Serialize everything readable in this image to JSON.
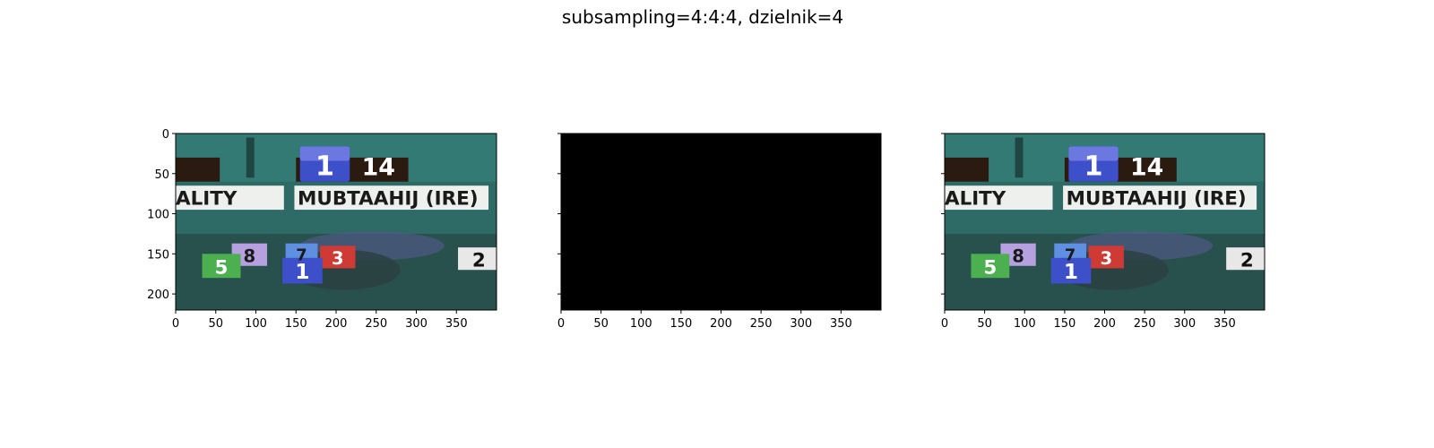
{
  "figure": {
    "title": "subsampling=4:4:4, dzielnik=4"
  },
  "scene": {
    "top_badge_number": "1",
    "top_odds": "14",
    "left_name_fragment": "ALITY",
    "horse_name": "MUBTAAHIJ (IRE)",
    "saddlecloths": [
      "8",
      "7",
      "3",
      "5",
      "1",
      "2"
    ]
  },
  "chart_data": [
    {
      "type": "image",
      "panel": "left",
      "content": "video-frame",
      "xlim": [
        0,
        400
      ],
      "ylim": [
        220,
        0
      ],
      "xticks": [
        0,
        50,
        100,
        150,
        200,
        250,
        300,
        350
      ],
      "yticks": [
        0,
        50,
        100,
        150,
        200
      ],
      "ytick_labels_shown": true
    },
    {
      "type": "image",
      "panel": "middle",
      "content": "black",
      "xlim": [
        0,
        400
      ],
      "ylim": [
        220,
        0
      ],
      "xticks": [
        0,
        50,
        100,
        150,
        200,
        250,
        300,
        350
      ],
      "yticks": [
        0,
        50,
        100,
        150,
        200
      ],
      "ytick_labels_shown": false
    },
    {
      "type": "image",
      "panel": "right",
      "content": "video-frame",
      "xlim": [
        0,
        400
      ],
      "ylim": [
        220,
        0
      ],
      "xticks": [
        0,
        50,
        100,
        150,
        200,
        250,
        300,
        350
      ],
      "yticks": [
        0,
        50,
        100,
        150,
        200
      ],
      "ytick_labels_shown": false
    }
  ],
  "colors": {
    "scene_bg": "#2f6b66",
    "banner_white": "#eef0ee",
    "badge_blue": "#3d4fc9",
    "badge_purple": "#b7a0e0",
    "badge_red": "#cf3a35",
    "badge_green": "#4caf50",
    "badge_light_blue": "#5e8fe0",
    "black": "#000000"
  }
}
